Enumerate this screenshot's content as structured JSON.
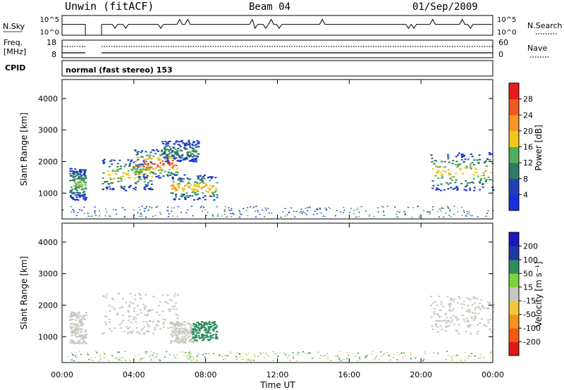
{
  "header": {
    "station": "Unwin (fitACF)",
    "beam": "Beam 04",
    "date": "01/Sep/2009"
  },
  "strip_nsky": {
    "left_label": "N.Sky",
    "left_ticks": [
      "10^5",
      "10^0"
    ],
    "right_label": "N.Search",
    "right_ticks": [
      "10^5",
      "10^0"
    ]
  },
  "strip_freq": {
    "left_label_1": "Freq.",
    "left_label_2": "[MHz]",
    "left_ticks": [
      "18",
      "8"
    ],
    "right_label": "Nave",
    "right_ticks": [
      "60",
      "0"
    ]
  },
  "strip_cpid": {
    "label": "CPID",
    "text": "normal (fast stereo) 153"
  },
  "colors": {
    "power": [
      "#1a2fe0",
      "#2040b8",
      "#2e7a62",
      "#4fae5a",
      "#f0c81a",
      "#f4962a",
      "#ef5a1e",
      "#e81c1c"
    ],
    "velocity": [
      "#e01818",
      "#f05a14",
      "#f0961e",
      "#f4c83c",
      "#c8c8c0",
      "#7ed23c",
      "#2e8e60",
      "#2038a8",
      "#1a18c0"
    ],
    "echo": "#c8c8c0",
    "line": "#000000"
  },
  "chart_data": [
    {
      "type": "heatmap",
      "panel": "power",
      "ylabel": "Slant Range [km]",
      "yticks": [
        "1000",
        "2000",
        "3000",
        "4000"
      ],
      "ylim": [
        180,
        4600
      ],
      "colorbar_label": "Power [dB]",
      "colorbar_ticks": [
        "4",
        "8",
        "12",
        "16",
        "20",
        "24",
        "28"
      ],
      "colorbar_range": [
        0,
        32
      ],
      "xlim_hours": [
        0,
        24
      ],
      "patches": [
        {
          "t0": 0.4,
          "t1": 1.3,
          "r0": 800,
          "r1": 1800,
          "peak_db": 14
        },
        {
          "t0": 2.2,
          "t1": 5.0,
          "r0": 1100,
          "r1": 2100,
          "peak_db": 18
        },
        {
          "t0": 4.0,
          "t1": 6.4,
          "r0": 1500,
          "r1": 2400,
          "peak_db": 27
        },
        {
          "t0": 5.5,
          "t1": 7.6,
          "r0": 2000,
          "r1": 2700,
          "peak_db": 10
        },
        {
          "t0": 6.0,
          "t1": 8.6,
          "r0": 800,
          "r1": 1600,
          "peak_db": 20
        },
        {
          "t0": 20.5,
          "t1": 24.0,
          "r0": 1100,
          "r1": 2300,
          "peak_db": 18
        }
      ]
    },
    {
      "type": "heatmap",
      "panel": "velocity",
      "ylabel": "Slant Range [km]",
      "xlabel": "Time UT",
      "yticks": [
        "1000",
        "2000",
        "3000",
        "4000"
      ],
      "ylim": [
        180,
        4600
      ],
      "colorbar_label": "Velocity [m s⁻¹]",
      "colorbar_ticks": [
        "-200",
        "-100",
        "-50",
        "-15",
        "15",
        "50",
        "100",
        "200"
      ],
      "colorbar_range": [
        -250,
        250
      ],
      "xlim_hours": [
        0,
        24
      ],
      "xticks": [
        "00:00",
        "04:00",
        "08:00",
        "12:00",
        "16:00",
        "20:00",
        "00:00"
      ],
      "patches": [
        {
          "t0": 0.4,
          "t1": 1.3,
          "r0": 800,
          "r1": 1800,
          "velocity": 0
        },
        {
          "t0": 2.2,
          "t1": 6.4,
          "r0": 1100,
          "r1": 2400,
          "velocity": 0
        },
        {
          "t0": 6.0,
          "t1": 7.5,
          "r0": 800,
          "r1": 1500,
          "velocity": 0
        },
        {
          "t0": 7.2,
          "t1": 8.6,
          "r0": 900,
          "r1": 1500,
          "velocity": 60
        },
        {
          "t0": 20.5,
          "t1": 24.0,
          "r0": 1100,
          "r1": 2300,
          "velocity": 0
        }
      ]
    }
  ]
}
